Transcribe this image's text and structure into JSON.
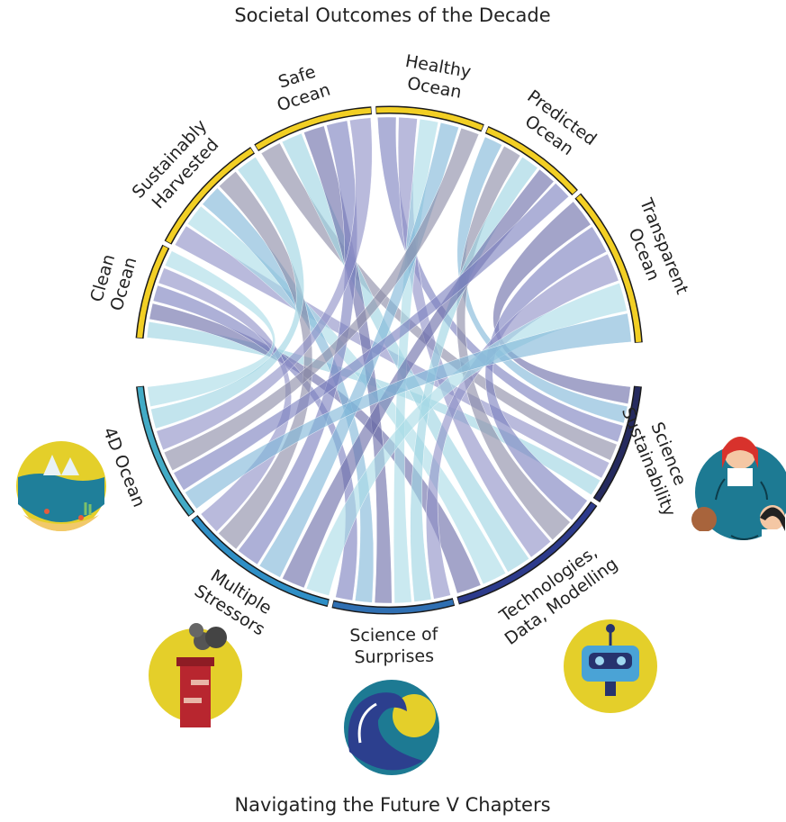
{
  "title": "Societal Outcomes of the Decade",
  "footer": "Navigating the Future V Chapters",
  "outcomes": [
    {
      "lines": [
        "Clean",
        "Ocean"
      ]
    },
    {
      "lines": [
        "Sustainably",
        "Harvested"
      ]
    },
    {
      "lines": [
        "Safe",
        "Ocean"
      ]
    },
    {
      "lines": [
        "Healthy",
        "Ocean"
      ]
    },
    {
      "lines": [
        "Predicted",
        "Ocean"
      ]
    },
    {
      "lines": [
        "Transparent",
        "Ocean"
      ]
    }
  ],
  "chapters": [
    {
      "lines": [
        "Sustainability",
        "Science"
      ]
    },
    {
      "lines": [
        "Technologies,",
        "Data, Modelling"
      ]
    },
    {
      "lines": [
        "Science of",
        "Surprises"
      ]
    },
    {
      "lines": [
        "Multiple",
        "Stressors"
      ]
    },
    {
      "lines": [
        "4D Ocean"
      ]
    }
  ]
}
